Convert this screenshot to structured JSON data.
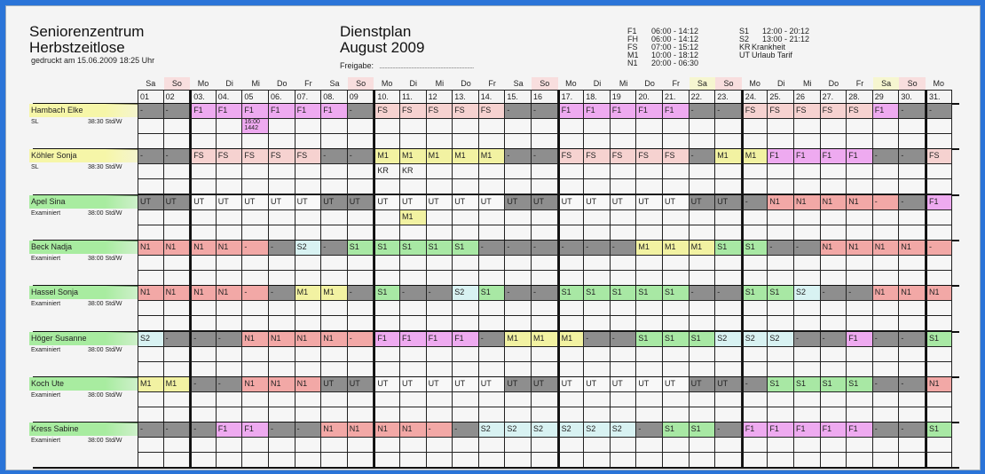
{
  "header": {
    "org_line1": "Seniorenzentrum",
    "org_line2": "Herbstzeitlose",
    "printed": "gedruckt am 15.06.2009  18:25 Uhr",
    "title": "Dienstplan",
    "month": "August 2009",
    "release_label": "Freigabe:",
    "release_line": "......................................................................."
  },
  "legend": [
    {
      "code": "F1",
      "desc": "06:00 - 14:12"
    },
    {
      "code": "FH",
      "desc": "06:00 - 14:12"
    },
    {
      "code": "FS",
      "desc": "07:00 - 15:12"
    },
    {
      "code": "M1",
      "desc": "10:00 - 18:12"
    },
    {
      "code": "N1",
      "desc": "20:00 - 06:30"
    },
    {
      "code": "S1",
      "desc": "12:00 - 20:12"
    },
    {
      "code": "S2",
      "desc": "13:00 - 21:12"
    },
    {
      "code": "KR",
      "desc": "Krankheit"
    },
    {
      "code": "UT",
      "desc": "Urlaub Tarif"
    }
  ],
  "days": [
    "Sa",
    "So",
    "Mo",
    "Di",
    "Mi",
    "Do",
    "Fr",
    "Sa",
    "So",
    "Mo",
    "Di",
    "Mi",
    "Do",
    "Fr",
    "Sa",
    "So",
    "Mo",
    "Di",
    "Mi",
    "Do",
    "Fr",
    "Sa",
    "So",
    "Mo",
    "Di",
    "Mi",
    "Do",
    "Fr",
    "Sa",
    "So",
    "Mo"
  ],
  "dates": [
    "01",
    "02",
    "03.",
    "04.",
    "05",
    "06.",
    "07.",
    "08.",
    "09",
    "10.",
    "11.",
    "12",
    "13.",
    "14.",
    "15.",
    "16",
    "17.",
    "18.",
    "19",
    "20.",
    "21.",
    "22.",
    "23.",
    "24.",
    "25.",
    "26",
    "27.",
    "28.",
    "29",
    "30.",
    "31."
  ],
  "colors": {
    "F1": "#eeaaf0",
    "FS": "#f6d2d0",
    "M1": "#f2f2a2",
    "N1": "#f2a8a6",
    "S1": "#a8e8a4",
    "S2": "#d8f2f2",
    "off": "#8e8e8e",
    "UT": "#f8f8f8",
    "name_sl": "#f6f6a8",
    "name_ex": "#a8eca0"
  },
  "employees": [
    {
      "name": "Hambach Elke",
      "role": "SL",
      "hours": "38:30 Std/W",
      "tone": "sl",
      "shifts": [
        "-",
        "-",
        "F1",
        "F1",
        "F1",
        "F1",
        "F1",
        "F1",
        "-",
        "FS",
        "FS",
        "FS",
        "FS",
        "FS",
        "-",
        "-",
        "F1",
        "F1",
        "F1",
        "F1",
        "F1",
        "-",
        "-",
        "FS",
        "FS",
        "FS",
        "FS",
        "FS",
        "F1",
        "-",
        "-"
      ],
      "extra": {
        "5": "16:00 1442"
      }
    },
    {
      "name": "Köhler Sonja",
      "role": "SL",
      "hours": "38:30 Std/W",
      "tone": "sl",
      "shifts": [
        "-",
        "-",
        "FS",
        "FS",
        "FS",
        "FS",
        "FS",
        "-",
        "-",
        "M1",
        "M1",
        "M1",
        "M1",
        "M1",
        "-",
        "-",
        "FS",
        "FS",
        "FS",
        "FS",
        "FS",
        "-",
        "M1",
        "M1",
        "F1",
        "F1",
        "F1",
        "F1",
        "-",
        "-",
        "FS"
      ],
      "extra": {
        "10": "KR",
        "11": "KR"
      }
    },
    {
      "name": "Apel Sina",
      "role": "Examiniert",
      "hours": "38:00 Std/W",
      "tone": "ex",
      "shifts": [
        "UT",
        "UT",
        "UT",
        "UT",
        "UT",
        "UT",
        "UT",
        "UT",
        "UT",
        "UT",
        "UT",
        "UT",
        "UT",
        "UT",
        "UT",
        "UT",
        "UT",
        "UT",
        "UT",
        "UT",
        "UT",
        "UT",
        "UT",
        "-",
        "N1",
        "N1",
        "N1",
        "N1",
        "-",
        "-",
        "F1"
      ],
      "extra": {
        "11": "M1"
      }
    },
    {
      "name": "Beck Nadja",
      "role": "Examiniert",
      "hours": "38:00 Std/W",
      "tone": "ex",
      "shifts": [
        "N1",
        "N1",
        "N1",
        "N1",
        "-",
        "-",
        "S2",
        "-",
        "S1",
        "S1",
        "S1",
        "S1",
        "S1",
        "-",
        "-",
        "-",
        "-",
        "-",
        "-",
        "M1",
        "M1",
        "M1",
        "S1",
        "S1",
        "-",
        "-",
        "N1",
        "N1",
        "N1",
        "N1",
        "-"
      ],
      "extra": {}
    },
    {
      "name": "Hassel Sonja",
      "role": "Examiniert",
      "hours": "38:00 Std/W",
      "tone": "ex",
      "shifts": [
        "N1",
        "N1",
        "N1",
        "N1",
        "-",
        "-",
        "M1",
        "M1",
        "-",
        "S1",
        "-",
        "-",
        "S2",
        "S1",
        "-",
        "-",
        "S1",
        "S1",
        "S1",
        "S1",
        "S1",
        "-",
        "-",
        "S1",
        "S1",
        "S2",
        "-",
        "-",
        "N1",
        "N1",
        "N1"
      ],
      "extra": {}
    },
    {
      "name": "Höger Susanne",
      "role": "Examiniert",
      "hours": "38:00 Std/W",
      "tone": "ex",
      "shifts": [
        "S2",
        "-",
        "-",
        "-",
        "N1",
        "N1",
        "N1",
        "N1",
        "-",
        "F1",
        "F1",
        "F1",
        "F1",
        "-",
        "M1",
        "M1",
        "M1",
        "-",
        "-",
        "S1",
        "S1",
        "S1",
        "S2",
        "S2",
        "S2",
        "-",
        "-",
        "F1",
        "-",
        "-",
        "S1"
      ],
      "extra": {}
    },
    {
      "name": "Koch Ute",
      "role": "Examiniert",
      "hours": "38:00 Std/W",
      "tone": "ex",
      "shifts": [
        "M1",
        "M1",
        "-",
        "-",
        "N1",
        "N1",
        "N1",
        "UT",
        "UT",
        "UT",
        "UT",
        "UT",
        "UT",
        "UT",
        "UT",
        "UT",
        "UT",
        "UT",
        "UT",
        "UT",
        "UT",
        "UT",
        "UT",
        "-",
        "S1",
        "S1",
        "S1",
        "S1",
        "-",
        "-",
        "N1"
      ],
      "extra": {}
    },
    {
      "name": "Kress Sabine",
      "role": "Examiniert",
      "hours": "38:00 Std/W",
      "tone": "ex",
      "shifts": [
        "-",
        "-",
        "-",
        "F1",
        "F1",
        "-",
        "-",
        "N1",
        "N1",
        "N1",
        "N1",
        "-",
        "-",
        "S2",
        "S2",
        "S2",
        "S2",
        "S2",
        "S2",
        "-",
        "S1",
        "S1",
        "-",
        "F1",
        "F1",
        "F1",
        "F1",
        "F1",
        "-",
        "-",
        "S1"
      ],
      "extra": {}
    }
  ]
}
